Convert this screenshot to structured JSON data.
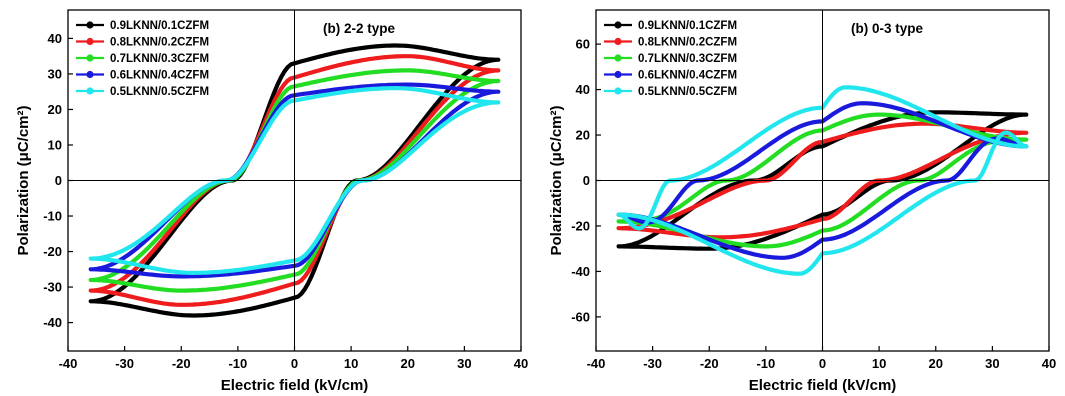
{
  "colors": {
    "0.9LKNN/0.1CZFM": "#000000",
    "0.8LKNN/0.2CZFM": "#ee1c1c",
    "0.7LKNN/0.3CZFM": "#22dd22",
    "0.6LKNN/0.4CZFM": "#1a1add",
    "0.5LKNN/0.5CZFM": "#22e6ee"
  },
  "chart_data": [
    {
      "type": "line",
      "title": "(b)  2-2 type",
      "xlabel": "Electric field  (kV/cm)",
      "ylabel": "Polarization  (μC/cm²)",
      "xlim": [
        -40,
        40
      ],
      "ylim": [
        -48,
        48
      ],
      "xticks": [
        -40,
        -30,
        -20,
        -10,
        0,
        10,
        20,
        30,
        40
      ],
      "yticks": [
        -40,
        -30,
        -20,
        -10,
        0,
        10,
        20,
        30,
        40
      ],
      "grid": false,
      "legend_position": "top-left",
      "series": [
        {
          "name": "0.9LKNN/0.1CZFM",
          "emax": 36,
          "pmax": 34,
          "pr": 33,
          "ec": 11,
          "pupper": 38,
          "plower": 37,
          "epeak": 18
        },
        {
          "name": "0.8LKNN/0.2CZFM",
          "emax": 36,
          "pmax": 31,
          "pr": 29,
          "ec": 11.5,
          "pupper": 35,
          "plower": 35,
          "epeak": 20
        },
        {
          "name": "0.7LKNN/0.3CZFM",
          "emax": 36,
          "pmax": 28,
          "pr": 26.5,
          "ec": 11.5,
          "pupper": 31,
          "plower": 31,
          "epeak": 20
        },
        {
          "name": "0.6LKNN/0.4CZFM",
          "emax": 36,
          "pmax": 25,
          "pr": 24,
          "ec": 12,
          "pupper": 27,
          "plower": 27,
          "epeak": 20
        },
        {
          "name": "0.5LKNN/0.5CZFM",
          "emax": 36,
          "pmax": 22,
          "pr": 22.5,
          "ec": 12,
          "pupper": 26,
          "plower": 25.5,
          "epeak": 18
        }
      ]
    },
    {
      "type": "line",
      "title": "(b)  0-3 type",
      "xlabel": "Electric field  (kV/cm)",
      "ylabel": "Polarization  (μC/cm²)",
      "xlim": [
        -40,
        40
      ],
      "ylim": [
        -75,
        75
      ],
      "xticks": [
        -40,
        -30,
        -20,
        -10,
        0,
        10,
        20,
        30,
        40
      ],
      "yticks": [
        -60,
        -40,
        -20,
        0,
        20,
        40,
        60
      ],
      "grid": false,
      "legend_position": "top-left",
      "series": [
        {
          "name": "0.9LKNN/0.1CZFM",
          "emax": 36,
          "pmax": 29,
          "pr": 15,
          "ec": 12,
          "pupper": 30,
          "plower": 28,
          "epeak": 20
        },
        {
          "name": "0.8LKNN/0.2CZFM",
          "emax": 36,
          "pmax": 21,
          "pr": 17,
          "ec": 10,
          "pupper": 25,
          "plower": 24,
          "epeak": 18
        },
        {
          "name": "0.7LKNN/0.3CZFM",
          "emax": 36,
          "pmax": 18,
          "pr": 22,
          "ec": 17,
          "pupper": 29,
          "plower": 27,
          "epeak": 10
        },
        {
          "name": "0.6LKNN/0.4CZFM",
          "emax": 36,
          "pmax": 15,
          "pr": 26,
          "ec": 22,
          "pupper": 34,
          "plower": 34,
          "epeak": 7
        },
        {
          "name": "0.5LKNN/0.5CZFM",
          "emax": 36,
          "pmax": 15,
          "pr": 32,
          "ec": 27,
          "pupper": 41,
          "plower": 40,
          "epeak": 4
        }
      ]
    }
  ]
}
